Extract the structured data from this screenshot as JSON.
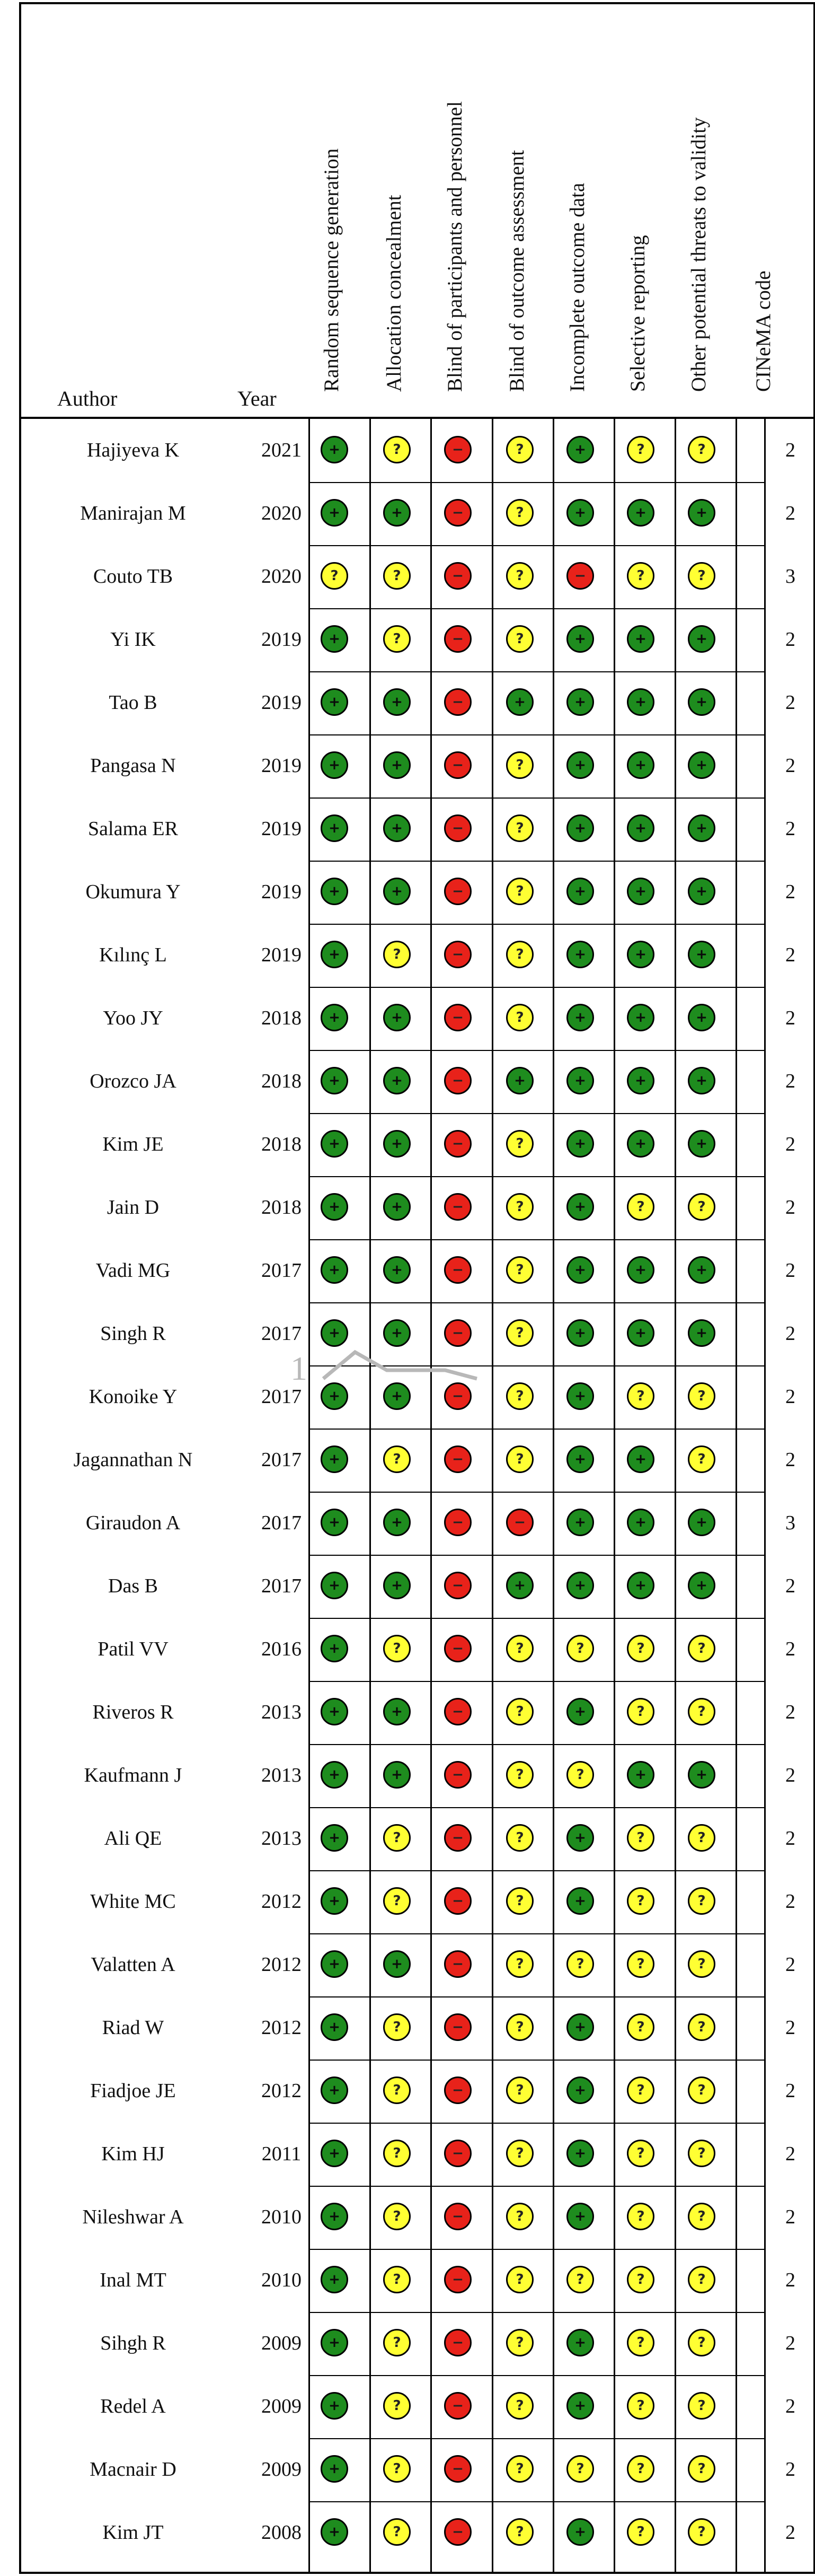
{
  "header": {
    "author": "Author",
    "year": "Year",
    "domains": [
      "Random sequence generation",
      "Allocation concealment",
      "Blind of participants and personnel",
      "Blind of outcome assessment",
      "Incomplete outcome data",
      "Selective reporting",
      "Other potential threats to validity"
    ],
    "cinema": "CINeMA code"
  },
  "legend_symbols": {
    "low": "+",
    "unclear": "?",
    "high": "−"
  },
  "colors": {
    "low": "#1e8c1e",
    "unclear": "#ffff33",
    "high": "#e8221a"
  },
  "watermark": "1",
  "rows": [
    {
      "author": "Hajiyeva K",
      "year": "2021",
      "ratings": [
        "low",
        "unclear",
        "high",
        "unclear",
        "low",
        "unclear",
        "unclear"
      ],
      "code": "2"
    },
    {
      "author": "Manirajan M",
      "year": "2020",
      "ratings": [
        "low",
        "low",
        "high",
        "unclear",
        "low",
        "low",
        "low"
      ],
      "code": "2"
    },
    {
      "author": "Couto TB",
      "year": "2020",
      "ratings": [
        "unclear",
        "unclear",
        "high",
        "unclear",
        "high",
        "unclear",
        "unclear"
      ],
      "code": "3"
    },
    {
      "author": "Yi IK",
      "year": "2019",
      "ratings": [
        "low",
        "unclear",
        "high",
        "unclear",
        "low",
        "low",
        "low"
      ],
      "code": "2"
    },
    {
      "author": "Tao B",
      "year": "2019",
      "ratings": [
        "low",
        "low",
        "high",
        "low",
        "low",
        "low",
        "low"
      ],
      "code": "2"
    },
    {
      "author": "Pangasa N",
      "year": "2019",
      "ratings": [
        "low",
        "low",
        "high",
        "unclear",
        "low",
        "low",
        "low"
      ],
      "code": "2"
    },
    {
      "author": "Salama ER",
      "year": "2019",
      "ratings": [
        "low",
        "low",
        "high",
        "unclear",
        "low",
        "low",
        "low"
      ],
      "code": "2"
    },
    {
      "author": "Okumura Y",
      "year": "2019",
      "ratings": [
        "low",
        "low",
        "high",
        "unclear",
        "low",
        "low",
        "low"
      ],
      "code": "2"
    },
    {
      "author": "Kılınç L",
      "year": "2019",
      "ratings": [
        "low",
        "unclear",
        "high",
        "unclear",
        "low",
        "low",
        "low"
      ],
      "code": "2"
    },
    {
      "author": "Yoo JY",
      "year": "2018",
      "ratings": [
        "low",
        "low",
        "high",
        "unclear",
        "low",
        "low",
        "low"
      ],
      "code": "2"
    },
    {
      "author": "Orozco JA",
      "year": "2018",
      "ratings": [
        "low",
        "low",
        "high",
        "low",
        "low",
        "low",
        "low"
      ],
      "code": "2"
    },
    {
      "author": "Kim JE",
      "year": "2018",
      "ratings": [
        "low",
        "low",
        "high",
        "unclear",
        "low",
        "low",
        "low"
      ],
      "code": "2"
    },
    {
      "author": "Jain D",
      "year": "2018",
      "ratings": [
        "low",
        "low",
        "high",
        "unclear",
        "low",
        "unclear",
        "unclear"
      ],
      "code": "2"
    },
    {
      "author": "Vadi MG",
      "year": "2017",
      "ratings": [
        "low",
        "low",
        "high",
        "unclear",
        "low",
        "low",
        "low"
      ],
      "code": "2"
    },
    {
      "author": "Singh R",
      "year": "2017",
      "ratings": [
        "low",
        "low",
        "high",
        "unclear",
        "low",
        "low",
        "low"
      ],
      "code": "2"
    },
    {
      "author": "Konoike Y",
      "year": "2017",
      "ratings": [
        "low",
        "low",
        "high",
        "unclear",
        "low",
        "unclear",
        "unclear"
      ],
      "code": "2"
    },
    {
      "author": "Jagannathan N",
      "year": "2017",
      "ratings": [
        "low",
        "unclear",
        "high",
        "unclear",
        "low",
        "low",
        "unclear"
      ],
      "code": "2"
    },
    {
      "author": "Giraudon A",
      "year": "2017",
      "ratings": [
        "low",
        "low",
        "high",
        "high",
        "low",
        "low",
        "low"
      ],
      "code": "3"
    },
    {
      "author": "Das B",
      "year": "2017",
      "ratings": [
        "low",
        "low",
        "high",
        "low",
        "low",
        "low",
        "low"
      ],
      "code": "2"
    },
    {
      "author": "Patil VV",
      "year": "2016",
      "ratings": [
        "low",
        "unclear",
        "high",
        "unclear",
        "unclear",
        "unclear",
        "unclear"
      ],
      "code": "2"
    },
    {
      "author": "Riveros R",
      "year": "2013",
      "ratings": [
        "low",
        "low",
        "high",
        "unclear",
        "low",
        "unclear",
        "unclear"
      ],
      "code": "2"
    },
    {
      "author": "Kaufmann J",
      "year": "2013",
      "ratings": [
        "low",
        "low",
        "high",
        "unclear",
        "unclear",
        "low",
        "low"
      ],
      "code": "2"
    },
    {
      "author": "Ali QE",
      "year": "2013",
      "ratings": [
        "low",
        "unclear",
        "high",
        "unclear",
        "low",
        "unclear",
        "unclear"
      ],
      "code": "2"
    },
    {
      "author": "White MC",
      "year": "2012",
      "ratings": [
        "low",
        "unclear",
        "high",
        "unclear",
        "low",
        "unclear",
        "unclear"
      ],
      "code": "2"
    },
    {
      "author": "Valatten A",
      "year": "2012",
      "ratings": [
        "low",
        "low",
        "high",
        "unclear",
        "unclear",
        "unclear",
        "unclear"
      ],
      "code": "2"
    },
    {
      "author": "Riad W",
      "year": "2012",
      "ratings": [
        "low",
        "unclear",
        "high",
        "unclear",
        "low",
        "unclear",
        "unclear"
      ],
      "code": "2"
    },
    {
      "author": "Fiadjoe JE",
      "year": "2012",
      "ratings": [
        "low",
        "unclear",
        "high",
        "unclear",
        "low",
        "unclear",
        "unclear"
      ],
      "code": "2"
    },
    {
      "author": "Kim HJ",
      "year": "2011",
      "ratings": [
        "low",
        "unclear",
        "high",
        "unclear",
        "low",
        "unclear",
        "unclear"
      ],
      "code": "2"
    },
    {
      "author": "Nileshwar A",
      "year": "2010",
      "ratings": [
        "low",
        "unclear",
        "high",
        "unclear",
        "low",
        "unclear",
        "unclear"
      ],
      "code": "2"
    },
    {
      "author": "Inal MT",
      "year": "2010",
      "ratings": [
        "low",
        "unclear",
        "high",
        "unclear",
        "unclear",
        "unclear",
        "unclear"
      ],
      "code": "2"
    },
    {
      "author": "Sihgh R",
      "year": "2009",
      "ratings": [
        "low",
        "unclear",
        "high",
        "unclear",
        "low",
        "unclear",
        "unclear"
      ],
      "code": "2"
    },
    {
      "author": "Redel A",
      "year": "2009",
      "ratings": [
        "low",
        "unclear",
        "high",
        "unclear",
        "low",
        "unclear",
        "unclear"
      ],
      "code": "2"
    },
    {
      "author": "Macnair D",
      "year": "2009",
      "ratings": [
        "low",
        "unclear",
        "high",
        "unclear",
        "unclear",
        "unclear",
        "unclear"
      ],
      "code": "2"
    },
    {
      "author": "Kim JT",
      "year": "2008",
      "ratings": [
        "low",
        "unclear",
        "high",
        "unclear",
        "low",
        "unclear",
        "unclear"
      ],
      "code": "2"
    }
  ]
}
